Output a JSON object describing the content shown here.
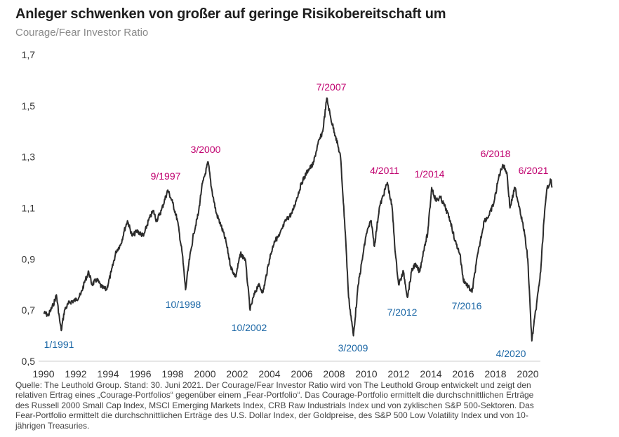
{
  "header": {
    "title": "Anleger schwenken von großer auf geringe Risikobereitschaft um",
    "subtitle": "Courage/Fear Investor Ratio"
  },
  "footnote": "Quelle: The Leuthold Group. Stand: 30. Juni 2021. Der Courage/Fear Investor Ratio wird von The Leuthold Group entwickelt und zeigt den relativen Ertrag eines „Courage-Portfolios“ gegenüber einem „Fear-Portfolio“. Das Courage-Portfolio ermittelt die durchschnittlichen Erträge des Russell 2000 Small Cap Index, MSCI Emerging Markets Index, CRB Raw Industrials Index und von zyklischen S&P 500-Sektoren. Das Fear-Portfolio ermittelt die durchschnittlichen Erträge des U.S. Dollar Index, der Goldpreise, des S&P 500 Low Volatility Index und von 10-jährigen Treasuries.",
  "colors": {
    "line": "#2b2b2b",
    "peak": "#c0006f",
    "trough": "#1a66a5"
  },
  "chart_data": {
    "type": "line",
    "title": "Courage/Fear Investor Ratio",
    "xlabel": "",
    "ylabel": "",
    "xlim": [
      1990,
      2021.6
    ],
    "ylim": [
      0.5,
      1.7
    ],
    "x_ticks": [
      "1990",
      "1992",
      "1994",
      "1996",
      "1998",
      "2000",
      "2002",
      "2004",
      "2006",
      "2008",
      "2010",
      "2012",
      "2014",
      "2016",
      "2018",
      "2020"
    ],
    "y_ticks": [
      "0,5",
      "0,7",
      "0,9",
      "1,1",
      "1,3",
      "1,5",
      "1,7"
    ],
    "series": [
      {
        "name": "Courage/Fear Investor Ratio",
        "points": [
          [
            1990.0,
            0.69
          ],
          [
            1990.3,
            0.68
          ],
          [
            1990.6,
            0.72
          ],
          [
            1990.8,
            0.76
          ],
          [
            1991.0,
            0.66
          ],
          [
            1991.1,
            0.62
          ],
          [
            1991.3,
            0.7
          ],
          [
            1991.6,
            0.73
          ],
          [
            1992.0,
            0.74
          ],
          [
            1992.3,
            0.76
          ],
          [
            1992.6,
            0.82
          ],
          [
            1992.8,
            0.85
          ],
          [
            1993.0,
            0.8
          ],
          [
            1993.3,
            0.82
          ],
          [
            1993.6,
            0.79
          ],
          [
            1993.9,
            0.78
          ],
          [
            1994.2,
            0.85
          ],
          [
            1994.5,
            0.93
          ],
          [
            1994.8,
            0.96
          ],
          [
            1995.0,
            1.01
          ],
          [
            1995.2,
            1.05
          ],
          [
            1995.5,
            0.99
          ],
          [
            1995.8,
            1.01
          ],
          [
            1996.2,
            0.99
          ],
          [
            1996.5,
            1.05
          ],
          [
            1996.8,
            1.09
          ],
          [
            1997.0,
            1.05
          ],
          [
            1997.3,
            1.09
          ],
          [
            1997.7,
            1.17
          ],
          [
            1998.0,
            1.12
          ],
          [
            1998.3,
            1.05
          ],
          [
            1998.6,
            0.92
          ],
          [
            1998.8,
            0.78
          ],
          [
            1999.0,
            0.88
          ],
          [
            1999.3,
            1.0
          ],
          [
            1999.6,
            1.08
          ],
          [
            1999.8,
            1.18
          ],
          [
            2000.2,
            1.28
          ],
          [
            2000.4,
            1.18
          ],
          [
            2000.7,
            1.08
          ],
          [
            2001.0,
            1.03
          ],
          [
            2001.3,
            0.97
          ],
          [
            2001.6,
            0.87
          ],
          [
            2001.9,
            0.83
          ],
          [
            2002.2,
            0.92
          ],
          [
            2002.5,
            0.9
          ],
          [
            2002.8,
            0.7
          ],
          [
            2003.0,
            0.75
          ],
          [
            2003.3,
            0.8
          ],
          [
            2003.6,
            0.77
          ],
          [
            2004.0,
            0.9
          ],
          [
            2004.3,
            0.97
          ],
          [
            2004.6,
            0.99
          ],
          [
            2005.0,
            1.05
          ],
          [
            2005.4,
            1.08
          ],
          [
            2005.7,
            1.14
          ],
          [
            2006.0,
            1.2
          ],
          [
            2006.4,
            1.25
          ],
          [
            2006.7,
            1.27
          ],
          [
            2007.0,
            1.35
          ],
          [
            2007.3,
            1.4
          ],
          [
            2007.55,
            1.53
          ],
          [
            2007.8,
            1.45
          ],
          [
            2008.1,
            1.38
          ],
          [
            2008.4,
            1.3
          ],
          [
            2008.7,
            1.0
          ],
          [
            2008.9,
            0.75
          ],
          [
            2009.2,
            0.6
          ],
          [
            2009.5,
            0.8
          ],
          [
            2009.8,
            0.92
          ],
          [
            2010.0,
            1.0
          ],
          [
            2010.3,
            1.05
          ],
          [
            2010.5,
            0.95
          ],
          [
            2010.8,
            1.1
          ],
          [
            2011.3,
            1.2
          ],
          [
            2011.6,
            1.1
          ],
          [
            2011.8,
            0.92
          ],
          [
            2012.0,
            0.8
          ],
          [
            2012.3,
            0.85
          ],
          [
            2012.55,
            0.75
          ],
          [
            2012.8,
            0.85
          ],
          [
            2013.0,
            0.88
          ],
          [
            2013.3,
            0.85
          ],
          [
            2013.6,
            0.95
          ],
          [
            2013.8,
            1.0
          ],
          [
            2014.05,
            1.18
          ],
          [
            2014.3,
            1.13
          ],
          [
            2014.6,
            1.14
          ],
          [
            2014.9,
            1.1
          ],
          [
            2015.2,
            1.05
          ],
          [
            2015.5,
            0.97
          ],
          [
            2015.8,
            0.92
          ],
          [
            2016.0,
            0.82
          ],
          [
            2016.55,
            0.77
          ],
          [
            2016.8,
            0.88
          ],
          [
            2017.0,
            0.95
          ],
          [
            2017.3,
            1.05
          ],
          [
            2017.6,
            1.07
          ],
          [
            2017.9,
            1.12
          ],
          [
            2018.2,
            1.22
          ],
          [
            2018.45,
            1.27
          ],
          [
            2018.7,
            1.24
          ],
          [
            2018.9,
            1.1
          ],
          [
            2019.2,
            1.18
          ],
          [
            2019.5,
            1.1
          ],
          [
            2019.8,
            1.0
          ],
          [
            2020.0,
            0.9
          ],
          [
            2020.25,
            0.58
          ],
          [
            2020.5,
            0.7
          ],
          [
            2020.8,
            0.85
          ],
          [
            2021.0,
            1.05
          ],
          [
            2021.2,
            1.18
          ],
          [
            2021.45,
            1.21
          ],
          [
            2021.5,
            1.18
          ]
        ]
      }
    ],
    "annotations": [
      {
        "label": "1/1991",
        "type": "trough"
      },
      {
        "label": "9/1997",
        "type": "peak"
      },
      {
        "label": "10/1998",
        "type": "trough"
      },
      {
        "label": "3/2000",
        "type": "peak"
      },
      {
        "label": "10/2002",
        "type": "trough"
      },
      {
        "label": "7/2007",
        "type": "peak"
      },
      {
        "label": "3/2009",
        "type": "trough"
      },
      {
        "label": "4/2011",
        "type": "peak"
      },
      {
        "label": "7/2012",
        "type": "trough"
      },
      {
        "label": "1/2014",
        "type": "peak"
      },
      {
        "label": "7/2016",
        "type": "trough"
      },
      {
        "label": "6/2018",
        "type": "peak"
      },
      {
        "label": "4/2020",
        "type": "trough"
      },
      {
        "label": "6/2021",
        "type": "peak"
      }
    ]
  }
}
